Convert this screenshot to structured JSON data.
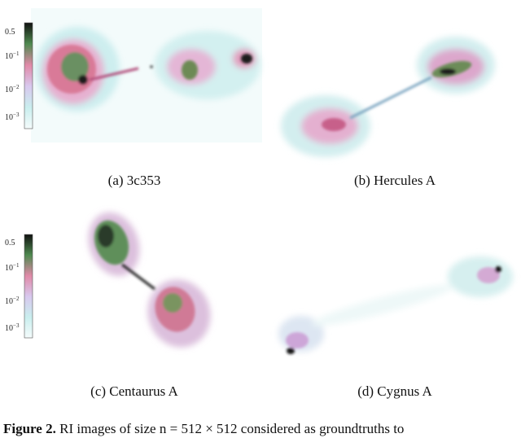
{
  "panels": [
    {
      "caption": "(a) 3c353"
    },
    {
      "caption": "(b) Hercules A"
    },
    {
      "caption": "(c) Centaurus A"
    },
    {
      "caption": "(d) Cygnus A"
    }
  ],
  "colorbar": {
    "labels": [
      {
        "base": "0.5",
        "exp": ""
      },
      {
        "base": "10",
        "exp": "−1"
      },
      {
        "base": "10",
        "exp": "−2"
      },
      {
        "base": "10",
        "exp": "−3"
      }
    ]
  },
  "figure_caption": {
    "label": "Figure 2.",
    "text": "RI images of size n = 512 × 512 considered as groundtruths to"
  }
}
